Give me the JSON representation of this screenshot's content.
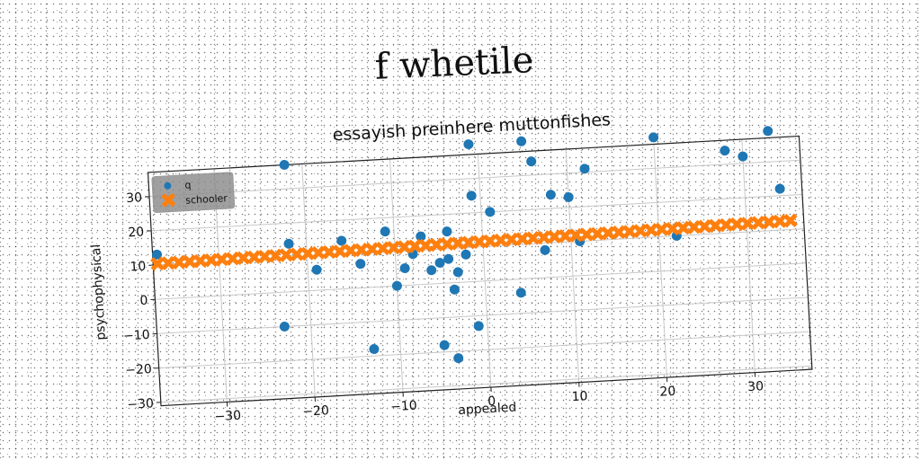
{
  "figure": {
    "suptitle": "f whetile"
  },
  "chart_data": {
    "type": "scatter",
    "title": "essayish preinhere muttonfishes",
    "xlabel": "appealed",
    "ylabel": "psychophysical",
    "xlim": [
      -37.5,
      36.5
    ],
    "ylim": [
      -31,
      37
    ],
    "xticks": [
      -30,
      -20,
      -10,
      0,
      10,
      20,
      30
    ],
    "yticks": [
      -30,
      -20,
      -10,
      0,
      10,
      20,
      30
    ],
    "grid": true,
    "legend_position": "upper-left",
    "series": [
      {
        "name": "q",
        "color": "#1f77b4",
        "marker": "circle",
        "points": [
          [
            -37,
            13
          ],
          [
            -23,
            -10
          ],
          [
            -22,
            14
          ],
          [
            -22,
            37
          ],
          [
            -19,
            6
          ],
          [
            -16,
            14
          ],
          [
            -14,
            7
          ],
          [
            -13,
            -18
          ],
          [
            -11,
            16
          ],
          [
            -10,
            0
          ],
          [
            -9,
            5
          ],
          [
            -8,
            9
          ],
          [
            -7,
            14
          ],
          [
            -6,
            4
          ],
          [
            -5,
            -18
          ],
          [
            -5,
            6
          ],
          [
            -4,
            7
          ],
          [
            -4,
            15
          ],
          [
            -3.5,
            -22
          ],
          [
            -3.5,
            -2
          ],
          [
            -3,
            3
          ],
          [
            -2,
            8
          ],
          [
            -1,
            -13
          ],
          [
            -1,
            40
          ],
          [
            -1,
            25
          ],
          [
            1,
            20
          ],
          [
            4,
            -4
          ],
          [
            5,
            40
          ],
          [
            6,
            34
          ],
          [
            7,
            8
          ],
          [
            8,
            24
          ],
          [
            10,
            23
          ],
          [
            11,
            10
          ],
          [
            12,
            31
          ],
          [
            20,
            39
          ],
          [
            22,
            10
          ],
          [
            28,
            34
          ],
          [
            30,
            32
          ],
          [
            34,
            22
          ],
          [
            33,
            39
          ]
        ]
      },
      {
        "name": "schooler",
        "color": "#ff7f0e",
        "marker": "x",
        "line": {
          "x_start": -37,
          "x_end": 35,
          "y_start": 10.3,
          "y_end": 12.6,
          "count": 60
        }
      }
    ]
  }
}
